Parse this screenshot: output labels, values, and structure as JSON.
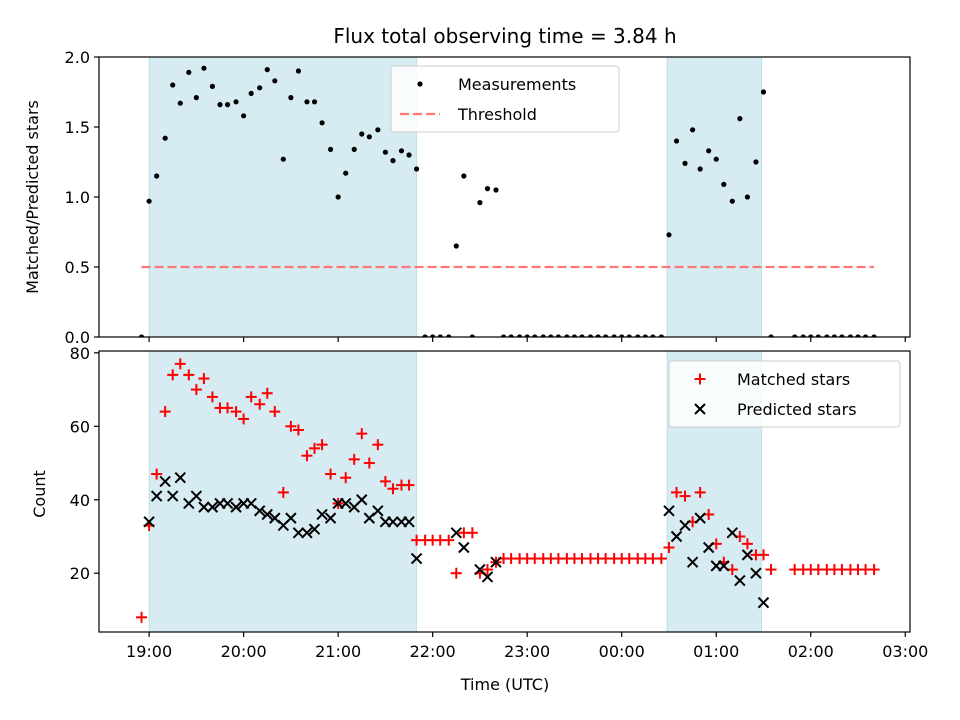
{
  "chart_data": [
    {
      "type": "scatter",
      "title": "Flux total observing time = 3.84 h",
      "ylabel": "Matched/Predicted stars",
      "xlabel": "",
      "ylim": [
        0,
        2.0
      ],
      "yticks": [
        "0.0",
        "0.5",
        "1.0",
        "1.5",
        "2.0"
      ],
      "ytick_values": [
        0,
        0.5,
        1.0,
        1.5,
        2.0
      ],
      "xlim_hours": [
        18.47,
        27.05
      ],
      "x_unit": "hours UTC (values >= 24 are after midnight)",
      "shaded_intervals": [
        [
          19.0,
          21.83
        ],
        [
          24.48,
          25.48
        ]
      ],
      "shade_color": "#add8e6",
      "threshold": {
        "name": "Threshold",
        "value": 0.5,
        "x_range": [
          18.92,
          26.67
        ],
        "color": "#ff7777",
        "style": "dashed"
      },
      "legend": {
        "placement": "upper-center",
        "entries": [
          "Measurements",
          "Threshold"
        ]
      },
      "series": [
        {
          "name": "Measurements",
          "marker": "dot",
          "color": "#000000",
          "x": [
            18.92,
            19.0,
            19.08,
            19.17,
            19.25,
            19.33,
            19.42,
            19.5,
            19.58,
            19.67,
            19.75,
            19.83,
            19.92,
            20.0,
            20.08,
            20.17,
            20.25,
            20.33,
            20.42,
            20.5,
            20.58,
            20.67,
            20.75,
            20.83,
            20.92,
            21.0,
            21.08,
            21.17,
            21.25,
            21.33,
            21.42,
            21.5,
            21.58,
            21.67,
            21.75,
            21.83,
            21.92,
            22.0,
            22.08,
            22.17,
            22.25,
            22.33,
            22.42,
            22.5,
            22.58,
            22.67,
            22.75,
            22.83,
            22.92,
            23.0,
            23.08,
            23.17,
            23.25,
            23.33,
            23.42,
            23.5,
            23.58,
            23.67,
            23.75,
            23.83,
            23.92,
            24.0,
            24.08,
            24.17,
            24.25,
            24.33,
            24.42,
            24.5,
            24.58,
            24.67,
            24.75,
            24.83,
            24.92,
            25.0,
            25.08,
            25.17,
            25.25,
            25.33,
            25.42,
            25.5,
            25.58,
            25.83,
            25.92,
            26.0,
            26.08,
            26.17,
            26.25,
            26.33,
            26.42,
            26.5,
            26.58,
            26.67
          ],
          "y": [
            0,
            0.97,
            1.15,
            1.42,
            1.8,
            1.67,
            1.89,
            1.71,
            1.92,
            1.79,
            1.66,
            1.66,
            1.68,
            1.58,
            1.74,
            1.78,
            1.91,
            1.83,
            1.27,
            1.71,
            1.9,
            1.68,
            1.68,
            1.53,
            1.34,
            1.0,
            1.17,
            1.34,
            1.45,
            1.43,
            1.48,
            1.32,
            1.26,
            1.33,
            1.3,
            1.2,
            0,
            0,
            0,
            0,
            0.65,
            1.15,
            0,
            0.96,
            1.06,
            1.05,
            0,
            0,
            0,
            0,
            0,
            0,
            0,
            0,
            0,
            0,
            0,
            0,
            0,
            0,
            0,
            0,
            0,
            0,
            0,
            0,
            0,
            0.73,
            1.4,
            1.24,
            1.48,
            1.2,
            1.33,
            1.27,
            1.09,
            0.97,
            1.56,
            1.0,
            1.25,
            1.75,
            0,
            0,
            0,
            0,
            0,
            0,
            0,
            0,
            0,
            0,
            0,
            0
          ]
        }
      ]
    },
    {
      "type": "scatter",
      "title": "",
      "ylabel": "Count",
      "xlabel": "Time (UTC)",
      "ylim": [
        4,
        80.5
      ],
      "yticks": [
        "20",
        "40",
        "60",
        "80"
      ],
      "ytick_values": [
        20,
        40,
        60,
        80
      ],
      "xlim_hours": [
        18.47,
        27.05
      ],
      "xticks": [
        "19:00",
        "20:00",
        "21:00",
        "22:00",
        "23:00",
        "00:00",
        "01:00",
        "02:00",
        "03:00"
      ],
      "xtick_values": [
        19,
        20,
        21,
        22,
        23,
        24,
        25,
        26,
        27
      ],
      "shaded_intervals": [
        [
          19.0,
          21.83
        ],
        [
          24.48,
          25.48
        ]
      ],
      "shade_color": "#add8e6",
      "legend": {
        "placement": "upper-right",
        "entries": [
          "Matched stars",
          "Predicted stars"
        ]
      },
      "series": [
        {
          "name": "Matched stars",
          "marker": "plus",
          "color": "#ff0000",
          "x": [
            18.92,
            19.0,
            19.08,
            19.17,
            19.25,
            19.33,
            19.42,
            19.5,
            19.58,
            19.67,
            19.75,
            19.83,
            19.92,
            20.0,
            20.08,
            20.17,
            20.25,
            20.33,
            20.42,
            20.5,
            20.58,
            20.67,
            20.75,
            20.83,
            20.92,
            21.0,
            21.08,
            21.17,
            21.25,
            21.33,
            21.42,
            21.5,
            21.58,
            21.67,
            21.75,
            21.83,
            21.92,
            22.0,
            22.08,
            22.17,
            22.25,
            22.33,
            22.42,
            22.5,
            22.58,
            22.67,
            22.75,
            22.83,
            22.92,
            23.0,
            23.08,
            23.17,
            23.25,
            23.33,
            23.42,
            23.5,
            23.58,
            23.67,
            23.75,
            23.83,
            23.92,
            24.0,
            24.08,
            24.17,
            24.25,
            24.33,
            24.42,
            24.5,
            24.58,
            24.67,
            24.75,
            24.83,
            24.92,
            25.0,
            25.08,
            25.17,
            25.25,
            25.33,
            25.42,
            25.5,
            25.58,
            25.83,
            25.92,
            26.0,
            26.08,
            26.17,
            26.25,
            26.33,
            26.42,
            26.5,
            26.58,
            26.67
          ],
          "y": [
            8,
            33,
            47,
            64,
            74,
            77,
            74,
            70,
            73,
            68,
            65,
            65,
            64,
            62,
            68,
            66,
            69,
            64,
            42,
            60,
            59,
            52,
            54,
            55,
            47,
            39,
            46,
            51,
            58,
            50,
            55,
            45,
            43,
            44,
            44,
            29,
            29,
            29,
            29,
            29,
            20,
            31,
            31,
            20,
            21,
            23,
            24,
            24,
            24,
            24,
            24,
            24,
            24,
            24,
            24,
            24,
            24,
            24,
            24,
            24,
            24,
            24,
            24,
            24,
            24,
            24,
            24,
            27,
            42,
            41,
            34,
            42,
            36,
            28,
            23,
            21,
            30,
            28,
            25,
            25,
            21,
            21,
            21,
            21,
            21,
            21,
            21,
            21,
            21,
            21,
            21,
            21
          ]
        },
        {
          "name": "Predicted stars",
          "marker": "x",
          "color": "#000000",
          "x": [
            19.0,
            19.08,
            19.17,
            19.25,
            19.33,
            19.42,
            19.5,
            19.58,
            19.67,
            19.75,
            19.83,
            19.92,
            20.0,
            20.08,
            20.17,
            20.25,
            20.33,
            20.42,
            20.5,
            20.58,
            20.67,
            20.75,
            20.83,
            20.92,
            21.0,
            21.08,
            21.17,
            21.25,
            21.33,
            21.42,
            21.5,
            21.58,
            21.67,
            21.75,
            21.83,
            22.25,
            22.33,
            22.5,
            22.58,
            22.67,
            24.5,
            24.58,
            24.67,
            24.75,
            24.83,
            24.92,
            25.0,
            25.08,
            25.17,
            25.25,
            25.33,
            25.42,
            25.5
          ],
          "y": [
            34,
            41,
            45,
            41,
            46,
            39,
            41,
            38,
            38,
            39,
            39,
            38,
            39,
            39,
            37,
            36,
            35,
            33,
            35,
            31,
            31,
            32,
            36,
            35,
            39,
            39,
            38,
            40,
            35,
            37,
            34,
            34,
            34,
            34,
            24,
            31,
            27,
            21,
            19,
            23,
            37,
            30,
            33,
            23,
            35,
            27,
            22,
            22,
            31,
            18,
            25,
            20,
            12
          ]
        }
      ]
    }
  ]
}
